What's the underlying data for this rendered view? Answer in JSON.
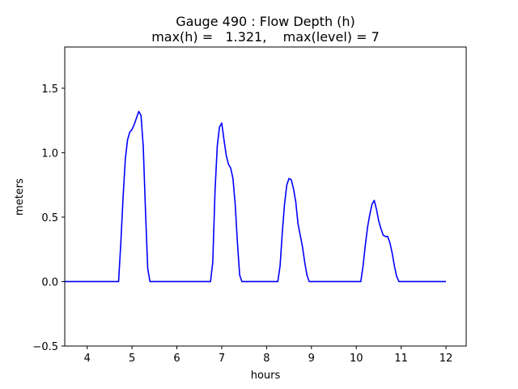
{
  "chart_data": {
    "type": "line",
    "title_line1": "Gauge 490 : Flow Depth (h)",
    "title_line2": "max(h) =   1.321,    max(level) = 7",
    "xlabel": "hours",
    "ylabel": "meters",
    "xlim": [
      3.5,
      12.45
    ],
    "ylim": [
      -0.5,
      1.82
    ],
    "xticks": [
      4,
      5,
      6,
      7,
      8,
      9,
      10,
      11,
      12
    ],
    "yticks": [
      -0.5,
      0.0,
      0.5,
      1.0,
      1.5
    ],
    "ytick_labels": [
      "−0.5",
      "0.0",
      "0.5",
      "1.0",
      "1.5"
    ],
    "line_color": "#0000ff",
    "grid": false,
    "series": [
      {
        "x": [
          3.5,
          4.7,
          4.75,
          4.8,
          4.85,
          4.9,
          4.95,
          5.0,
          5.05,
          5.1,
          5.15,
          5.2,
          5.25,
          5.3,
          5.35,
          5.4,
          5.45,
          6.75,
          6.8,
          6.85,
          6.9,
          6.95,
          7.0,
          7.05,
          7.1,
          7.15,
          7.2,
          7.25,
          7.3,
          7.35,
          7.4,
          7.45,
          7.5,
          8.25,
          8.3,
          8.35,
          8.4,
          8.45,
          8.5,
          8.55,
          8.6,
          8.65,
          8.7,
          8.75,
          8.8,
          8.85,
          8.9,
          8.95,
          9.0,
          9.05,
          10.1,
          10.15,
          10.2,
          10.25,
          10.3,
          10.35,
          10.4,
          10.45,
          10.5,
          10.55,
          10.6,
          10.65,
          10.7,
          10.75,
          10.8,
          10.85,
          10.9,
          10.95,
          11.0,
          11.05,
          11.1,
          12.0
        ],
        "y": [
          0.0,
          0.0,
          0.3,
          0.65,
          0.95,
          1.1,
          1.16,
          1.18,
          1.22,
          1.27,
          1.32,
          1.29,
          1.05,
          0.55,
          0.1,
          0.0,
          0.0,
          0.0,
          0.15,
          0.7,
          1.05,
          1.2,
          1.23,
          1.1,
          0.98,
          0.91,
          0.88,
          0.8,
          0.6,
          0.3,
          0.05,
          0.0,
          0.0,
          0.0,
          0.12,
          0.38,
          0.6,
          0.75,
          0.8,
          0.79,
          0.72,
          0.62,
          0.45,
          0.36,
          0.27,
          0.15,
          0.05,
          0.0,
          0.0,
          0.0,
          0.0,
          0.12,
          0.28,
          0.42,
          0.52,
          0.6,
          0.63,
          0.56,
          0.47,
          0.41,
          0.36,
          0.35,
          0.35,
          0.3,
          0.22,
          0.12,
          0.04,
          0.0,
          0.0,
          0.0,
          0.0,
          0.0
        ]
      }
    ]
  }
}
